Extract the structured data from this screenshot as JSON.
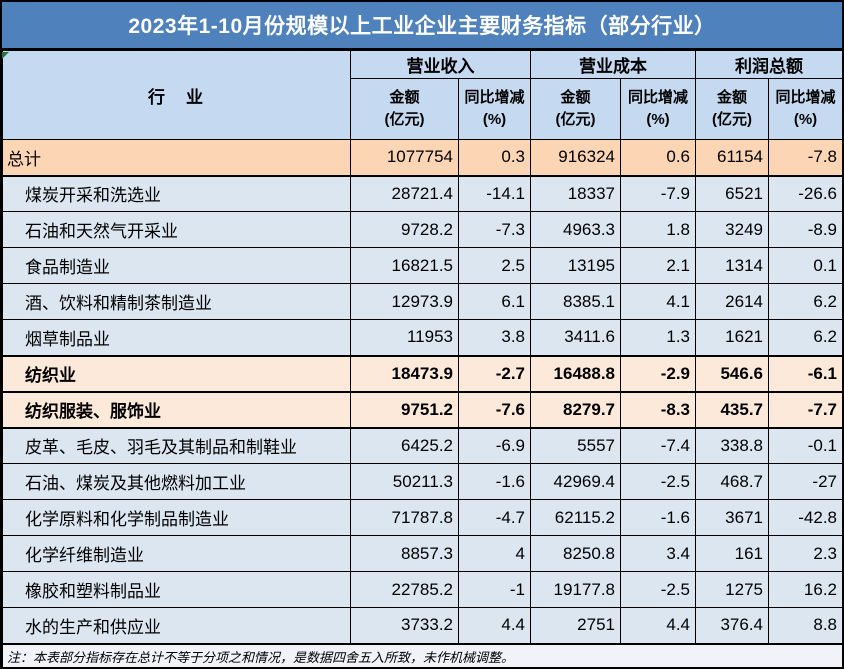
{
  "title": "2023年1-10月份规模以上工业企业主要财务指标（部分行业）",
  "footnote": "注：本表部分指标存在总计不等于分项之和情况，是数据四舍五入所致，未作机械调整。",
  "header": {
    "industry_label": "行　业",
    "group_labels": [
      "营业收入",
      "营业成本",
      "利润总额"
    ],
    "sub_headers": {
      "amount": [
        "金额",
        "(亿元)"
      ],
      "pct": [
        "同比增减",
        "(%)"
      ]
    }
  },
  "colors": {
    "title_bg": "#4f81bd",
    "title_text": "#ffffff",
    "header_bg": "#c5d9f1",
    "row_bg": "#dce6f1",
    "total_row_bg": "#fcd5b4",
    "highlight_row_bg": "#fde9d9",
    "footer_bg": "#f1f3f9",
    "border": "#000000",
    "flag_green": "#217346"
  },
  "chart_data": {
    "type": "table",
    "title": "2023年1-10月份规模以上工业企业主要财务指标（部分行业）",
    "columns": [
      "行业",
      "营业收入 金额(亿元)",
      "营业收入 同比增减(%)",
      "营业成本 金额(亿元)",
      "营业成本 同比增减(%)",
      "利润总额 金额(亿元)",
      "利润总额 同比增减(%)"
    ],
    "rows": [
      {
        "industry": "总计",
        "emphasis": "total",
        "values": [
          "1077754",
          "0.3",
          "916324",
          "0.6",
          "61154",
          "-7.8"
        ]
      },
      {
        "industry": "煤炭开采和洗选业",
        "emphasis": "normal",
        "values": [
          "28721.4",
          "-14.1",
          "18337",
          "-7.9",
          "6521",
          "-26.6"
        ]
      },
      {
        "industry": "石油和天然气开采业",
        "emphasis": "normal",
        "values": [
          "9728.2",
          "-7.3",
          "4963.3",
          "1.8",
          "3249",
          "-8.9"
        ]
      },
      {
        "industry": "食品制造业",
        "emphasis": "normal",
        "values": [
          "16821.5",
          "2.5",
          "13195",
          "2.1",
          "1314",
          "0.1"
        ]
      },
      {
        "industry": "酒、饮料和精制茶制造业",
        "emphasis": "normal",
        "values": [
          "12973.9",
          "6.1",
          "8385.1",
          "4.1",
          "2614",
          "6.2"
        ]
      },
      {
        "industry": "烟草制品业",
        "emphasis": "normal",
        "values": [
          "11953",
          "3.8",
          "3411.6",
          "1.3",
          "1621",
          "6.2"
        ]
      },
      {
        "industry": "纺织业",
        "emphasis": "highlight",
        "values": [
          "18473.9",
          "-2.7",
          "16488.8",
          "-2.9",
          "546.6",
          "-6.1"
        ]
      },
      {
        "industry": "纺织服装、服饰业",
        "emphasis": "highlight",
        "values": [
          "9751.2",
          "-7.6",
          "8279.7",
          "-8.3",
          "435.7",
          "-7.7"
        ]
      },
      {
        "industry": "皮革、毛皮、羽毛及其制品和制鞋业",
        "emphasis": "normal",
        "values": [
          "6425.2",
          "-6.9",
          "5557",
          "-7.4",
          "338.8",
          "-0.1"
        ]
      },
      {
        "industry": "石油、煤炭及其他燃料加工业",
        "emphasis": "normal",
        "values": [
          "50211.3",
          "-1.6",
          "42969.4",
          "-2.5",
          "468.7",
          "-27"
        ]
      },
      {
        "industry": "化学原料和化学制品制造业",
        "emphasis": "normal",
        "values": [
          "71787.8",
          "-4.7",
          "62115.2",
          "-1.6",
          "3671",
          "-42.8"
        ]
      },
      {
        "industry": "化学纤维制造业",
        "emphasis": "normal",
        "values": [
          "8857.3",
          "4",
          "8250.8",
          "3.4",
          "161",
          "2.3"
        ]
      },
      {
        "industry": "橡胶和塑料制品业",
        "emphasis": "normal",
        "values": [
          "22785.2",
          "-1",
          "19177.8",
          "-2.5",
          "1275",
          "16.2"
        ]
      },
      {
        "industry": "水的生产和供应业",
        "emphasis": "normal",
        "values": [
          "3733.2",
          "4.4",
          "2751",
          "4.4",
          "376.4",
          "8.8"
        ]
      }
    ],
    "note": "注：本表部分指标存在总计不等于分项之和情况，是数据四舍五入所致，未作机械调整。"
  }
}
